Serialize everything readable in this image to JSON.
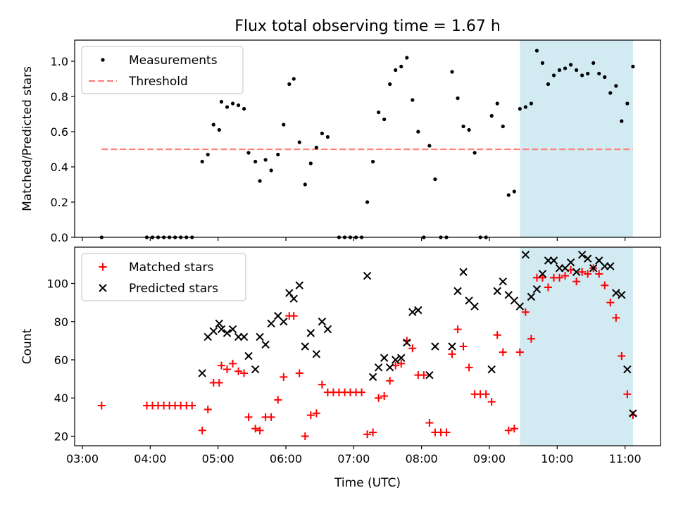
{
  "chart_data": [
    {
      "type": "scatter",
      "title": "Flux total observing time = 1.67 h",
      "xlabel": "",
      "ylabel": "Matched/Predicted stars",
      "ylim": [
        0,
        1.12
      ],
      "yticks": [
        "0.0",
        "0.2",
        "0.4",
        "0.6",
        "0.8",
        "1.0"
      ],
      "grid": false,
      "legend": "upper-left",
      "highlight_span": {
        "x_start": "09:27",
        "x_end": "11:07",
        "color": "#add8e6"
      },
      "threshold": {
        "name": "Threshold",
        "value": 0.5,
        "x_start": "03:17",
        "x_end": "11:07",
        "color": "#ff7f7f"
      },
      "series": [
        {
          "name": "Measurements",
          "color": "#000000",
          "marker": "dot",
          "points": [
            [
              "03:17",
              0.0
            ],
            [
              "03:57",
              0.0
            ],
            [
              "04:02",
              0.0
            ],
            [
              "04:07",
              0.0
            ],
            [
              "04:12",
              0.0
            ],
            [
              "04:17",
              0.0
            ],
            [
              "04:22",
              0.0
            ],
            [
              "04:27",
              0.0
            ],
            [
              "04:32",
              0.0
            ],
            [
              "04:37",
              0.0
            ],
            [
              "04:46",
              0.43
            ],
            [
              "04:51",
              0.47
            ],
            [
              "04:56",
              0.64
            ],
            [
              "05:01",
              0.61
            ],
            [
              "05:03",
              0.77
            ],
            [
              "05:08",
              0.74
            ],
            [
              "05:13",
              0.76
            ],
            [
              "05:18",
              0.75
            ],
            [
              "05:23",
              0.73
            ],
            [
              "05:27",
              0.48
            ],
            [
              "05:33",
              0.43
            ],
            [
              "05:37",
              0.32
            ],
            [
              "05:42",
              0.44
            ],
            [
              "05:47",
              0.38
            ],
            [
              "05:53",
              0.47
            ],
            [
              "05:58",
              0.64
            ],
            [
              "06:03",
              0.87
            ],
            [
              "06:07",
              0.9
            ],
            [
              "06:12",
              0.54
            ],
            [
              "06:17",
              0.3
            ],
            [
              "06:22",
              0.42
            ],
            [
              "06:27",
              0.51
            ],
            [
              "06:32",
              0.59
            ],
            [
              "06:37",
              0.57
            ],
            [
              "06:47",
              0.0
            ],
            [
              "06:52",
              0.0
            ],
            [
              "06:57",
              0.0
            ],
            [
              "07:02",
              0.0
            ],
            [
              "07:07",
              0.0
            ],
            [
              "07:12",
              0.2
            ],
            [
              "07:17",
              0.43
            ],
            [
              "07:22",
              0.71
            ],
            [
              "07:27",
              0.67
            ],
            [
              "07:32",
              0.87
            ],
            [
              "07:37",
              0.95
            ],
            [
              "07:42",
              0.97
            ],
            [
              "07:47",
              1.02
            ],
            [
              "07:52",
              0.78
            ],
            [
              "07:57",
              0.6
            ],
            [
              "08:02",
              0.0
            ],
            [
              "08:07",
              0.52
            ],
            [
              "08:12",
              0.33
            ],
            [
              "08:17",
              0.0
            ],
            [
              "08:22",
              0.0
            ],
            [
              "08:27",
              0.94
            ],
            [
              "08:32",
              0.79
            ],
            [
              "08:37",
              0.63
            ],
            [
              "08:42",
              0.61
            ],
            [
              "08:47",
              0.48
            ],
            [
              "08:52",
              0.0
            ],
            [
              "08:57",
              0.0
            ],
            [
              "09:02",
              0.69
            ],
            [
              "09:07",
              0.76
            ],
            [
              "09:12",
              0.63
            ],
            [
              "09:17",
              0.24
            ],
            [
              "09:22",
              0.26
            ],
            [
              "09:27",
              0.73
            ],
            [
              "09:32",
              0.74
            ],
            [
              "09:37",
              0.76
            ],
            [
              "09:42",
              1.06
            ],
            [
              "09:47",
              0.99
            ],
            [
              "09:52",
              0.87
            ],
            [
              "09:57",
              0.92
            ],
            [
              "10:02",
              0.95
            ],
            [
              "10:07",
              0.96
            ],
            [
              "10:12",
              0.98
            ],
            [
              "10:17",
              0.95
            ],
            [
              "10:22",
              0.92
            ],
            [
              "10:27",
              0.93
            ],
            [
              "10:32",
              0.99
            ],
            [
              "10:37",
              0.93
            ],
            [
              "10:42",
              0.91
            ],
            [
              "10:47",
              0.82
            ],
            [
              "10:52",
              0.86
            ],
            [
              "10:57",
              0.66
            ],
            [
              "11:02",
              0.76
            ],
            [
              "11:07",
              0.97
            ]
          ]
        }
      ]
    },
    {
      "type": "scatter",
      "title": "",
      "xlabel": "Time (UTC)",
      "ylabel": "Count",
      "ylim": [
        15,
        119
      ],
      "yticks": [
        "20",
        "40",
        "60",
        "80",
        "100"
      ],
      "xticks": [
        "03:00",
        "04:00",
        "05:00",
        "06:00",
        "07:00",
        "08:00",
        "09:00",
        "10:00",
        "11:00"
      ],
      "grid": false,
      "legend": "upper-left",
      "highlight_span": {
        "x_start": "09:27",
        "x_end": "11:07",
        "color": "#add8e6"
      },
      "series": [
        {
          "name": "Matched stars",
          "color": "#ff0000",
          "marker": "plus",
          "points": [
            [
              "03:17",
              36
            ],
            [
              "03:57",
              36
            ],
            [
              "04:02",
              36
            ],
            [
              "04:07",
              36
            ],
            [
              "04:12",
              36
            ],
            [
              "04:17",
              36
            ],
            [
              "04:22",
              36
            ],
            [
              "04:27",
              36
            ],
            [
              "04:32",
              36
            ],
            [
              "04:37",
              36
            ],
            [
              "04:46",
              23
            ],
            [
              "04:51",
              34
            ],
            [
              "04:56",
              48
            ],
            [
              "05:01",
              48
            ],
            [
              "05:03",
              57
            ],
            [
              "05:08",
              55
            ],
            [
              "05:13",
              58
            ],
            [
              "05:18",
              54
            ],
            [
              "05:23",
              53
            ],
            [
              "05:27",
              30
            ],
            [
              "05:33",
              24
            ],
            [
              "05:37",
              23
            ],
            [
              "05:42",
              30
            ],
            [
              "05:47",
              30
            ],
            [
              "05:53",
              39
            ],
            [
              "05:58",
              51
            ],
            [
              "06:03",
              83
            ],
            [
              "06:07",
              83
            ],
            [
              "06:12",
              53
            ],
            [
              "06:17",
              20
            ],
            [
              "06:22",
              31
            ],
            [
              "06:27",
              32
            ],
            [
              "06:32",
              47
            ],
            [
              "06:37",
              43
            ],
            [
              "06:42",
              43
            ],
            [
              "06:47",
              43
            ],
            [
              "06:52",
              43
            ],
            [
              "06:57",
              43
            ],
            [
              "07:02",
              43
            ],
            [
              "07:07",
              43
            ],
            [
              "07:12",
              21
            ],
            [
              "07:17",
              22
            ],
            [
              "07:22",
              40
            ],
            [
              "07:27",
              41
            ],
            [
              "07:32",
              49
            ],
            [
              "07:37",
              57
            ],
            [
              "07:42",
              58
            ],
            [
              "07:47",
              70
            ],
            [
              "07:52",
              66
            ],
            [
              "07:57",
              52
            ],
            [
              "08:02",
              52
            ],
            [
              "08:07",
              27
            ],
            [
              "08:12",
              22
            ],
            [
              "08:17",
              22
            ],
            [
              "08:22",
              22
            ],
            [
              "08:27",
              63
            ],
            [
              "08:32",
              76
            ],
            [
              "08:37",
              67
            ],
            [
              "08:42",
              56
            ],
            [
              "08:47",
              42
            ],
            [
              "08:52",
              42
            ],
            [
              "08:57",
              42
            ],
            [
              "09:02",
              38
            ],
            [
              "09:07",
              73
            ],
            [
              "09:12",
              64
            ],
            [
              "09:17",
              23
            ],
            [
              "09:22",
              24
            ],
            [
              "09:27",
              64
            ],
            [
              "09:32",
              85
            ],
            [
              "09:37",
              71
            ],
            [
              "09:42",
              103
            ],
            [
              "09:47",
              103
            ],
            [
              "09:52",
              98
            ],
            [
              "09:57",
              103
            ],
            [
              "10:02",
              103
            ],
            [
              "10:07",
              104
            ],
            [
              "10:12",
              107
            ],
            [
              "10:17",
              101
            ],
            [
              "10:22",
              106
            ],
            [
              "10:27",
              105
            ],
            [
              "10:32",
              108
            ],
            [
              "10:37",
              105
            ],
            [
              "10:42",
              99
            ],
            [
              "10:47",
              90
            ],
            [
              "10:52",
              82
            ],
            [
              "10:57",
              62
            ],
            [
              "11:02",
              42
            ],
            [
              "11:07",
              31
            ]
          ]
        },
        {
          "name": "Predicted stars",
          "color": "#000000",
          "marker": "x",
          "points": [
            [
              "04:46",
              53
            ],
            [
              "04:51",
              72
            ],
            [
              "04:56",
              75
            ],
            [
              "05:01",
              79
            ],
            [
              "05:03",
              76
            ],
            [
              "05:08",
              74
            ],
            [
              "05:13",
              76
            ],
            [
              "05:18",
              72
            ],
            [
              "05:23",
              72
            ],
            [
              "05:27",
              62
            ],
            [
              "05:33",
              55
            ],
            [
              "05:37",
              72
            ],
            [
              "05:42",
              68
            ],
            [
              "05:47",
              79
            ],
            [
              "05:53",
              83
            ],
            [
              "05:58",
              80
            ],
            [
              "06:03",
              95
            ],
            [
              "06:07",
              92
            ],
            [
              "06:12",
              99
            ],
            [
              "06:17",
              67
            ],
            [
              "06:22",
              74
            ],
            [
              "06:27",
              63
            ],
            [
              "06:32",
              80
            ],
            [
              "06:37",
              76
            ],
            [
              "07:12",
              104
            ],
            [
              "07:17",
              51
            ],
            [
              "07:22",
              56
            ],
            [
              "07:27",
              61
            ],
            [
              "07:32",
              56
            ],
            [
              "07:37",
              60
            ],
            [
              "07:42",
              61
            ],
            [
              "07:47",
              69
            ],
            [
              "07:52",
              85
            ],
            [
              "07:57",
              86
            ],
            [
              "08:07",
              52
            ],
            [
              "08:12",
              67
            ],
            [
              "08:27",
              67
            ],
            [
              "08:32",
              96
            ],
            [
              "08:37",
              106
            ],
            [
              "08:42",
              91
            ],
            [
              "08:47",
              88
            ],
            [
              "09:02",
              55
            ],
            [
              "09:07",
              96
            ],
            [
              "09:12",
              101
            ],
            [
              "09:17",
              94
            ],
            [
              "09:22",
              91
            ],
            [
              "09:27",
              88
            ],
            [
              "09:32",
              115
            ],
            [
              "09:37",
              93
            ],
            [
              "09:42",
              97
            ],
            [
              "09:47",
              105
            ],
            [
              "09:52",
              112
            ],
            [
              "09:57",
              112
            ],
            [
              "10:02",
              108
            ],
            [
              "10:07",
              108
            ],
            [
              "10:12",
              111
            ],
            [
              "10:17",
              106
            ],
            [
              "10:22",
              115
            ],
            [
              "10:27",
              113
            ],
            [
              "10:32",
              108
            ],
            [
              "10:37",
              112
            ],
            [
              "10:42",
              109
            ],
            [
              "10:47",
              109
            ],
            [
              "10:52",
              95
            ],
            [
              "10:57",
              94
            ],
            [
              "11:02",
              55
            ],
            [
              "11:07",
              32
            ]
          ]
        }
      ]
    }
  ]
}
